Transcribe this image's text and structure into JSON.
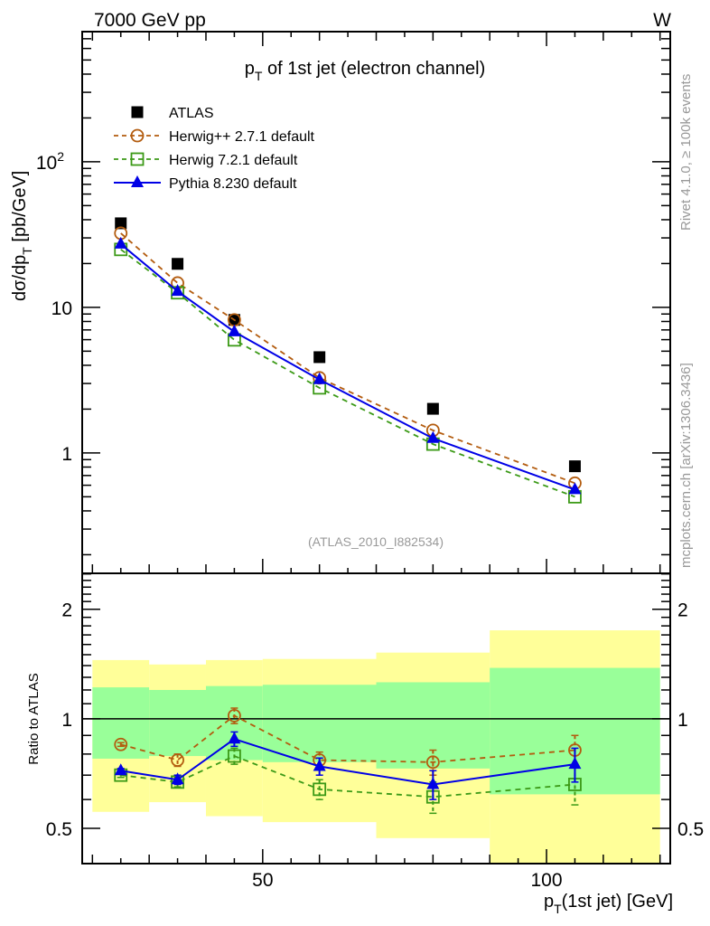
{
  "header": {
    "left": "7000 GeV pp",
    "right": "W"
  },
  "side_labels": {
    "rivet": "Rivet 4.1.0, ≥ 100k events",
    "mcplots": "mcplots.cern.ch [arXiv:1306.3436]"
  },
  "chart_data": [
    {
      "type": "line",
      "title": "p_T of 1st jet (electron channel)",
      "title_main": "p",
      "title_sub": "T",
      "title_rest": " of 1st jet (electron channel)",
      "ylabel": "dσ/dp_T [pb/GeV]",
      "ylabel_main": "dσ/dp",
      "ylabel_sub": "T",
      "ylabel_rest": "  [pb/GeV]",
      "yscale": "log",
      "ylim": [
        0.149,
        783
      ],
      "xlim": [
        18.2,
        121.8
      ],
      "yticks": [
        {
          "value": 100,
          "label": "10",
          "sup": "2"
        },
        {
          "value": 10,
          "label": "10",
          "sup": ""
        },
        {
          "value": 1,
          "label": "1",
          "sup": ""
        }
      ],
      "annotation": "(ATLAS_2010_I882534)",
      "legend_position": "top-left",
      "x": [
        25,
        35,
        45,
        60,
        80,
        105
      ],
      "series": [
        {
          "name": "ATLAS",
          "marker": "square-filled",
          "color": "#000000",
          "line": "none",
          "values": [
            37.8,
            19.9,
            8.2,
            4.55,
            2.01,
            0.81
          ]
        },
        {
          "name": "Herwig++ 2.7.1 default",
          "marker": "circle-open",
          "color": "#b35c0f",
          "line": "dashed",
          "values": [
            32.3,
            14.7,
            8.2,
            3.28,
            1.43,
            0.62
          ]
        },
        {
          "name": "Herwig 7.2.1 default",
          "marker": "square-open",
          "color": "#3c9a17",
          "line": "dashed",
          "values": [
            25.0,
            12.6,
            5.98,
            2.8,
            1.15,
            0.5
          ]
        },
        {
          "name": "Pythia 8.230 default",
          "marker": "triangle-filled",
          "color": "#0000e6",
          "line": "solid",
          "values": [
            27.2,
            12.9,
            6.8,
            3.19,
            1.26,
            0.56
          ]
        }
      ]
    },
    {
      "type": "line",
      "ylabel": "Ratio to ATLAS",
      "yscale": "log",
      "ylim": [
        0.4,
        2.51
      ],
      "xlim": [
        18.2,
        121.8
      ],
      "xlabel": "p_T(1st jet) [GeV]",
      "xlabel_main": "p",
      "xlabel_sub": "T",
      "xlabel_rest": "(1st jet) [GeV]",
      "xticks": [
        {
          "value": 50,
          "label": "50"
        },
        {
          "value": 100,
          "label": "100"
        }
      ],
      "yticks": [
        {
          "value": 2,
          "label": "2"
        },
        {
          "value": 1,
          "label": "1"
        },
        {
          "value": 0.5,
          "label": "0.5"
        }
      ],
      "reference_line": 1,
      "bands": {
        "bins": [
          [
            20,
            30
          ],
          [
            30,
            40
          ],
          [
            40,
            50
          ],
          [
            50,
            70
          ],
          [
            70,
            90
          ],
          [
            90,
            120
          ]
        ],
        "yellow": {
          "color": "#ffff99",
          "low": [
            0.555,
            0.59,
            0.54,
            0.52,
            0.47,
            0.35
          ],
          "high": [
            1.45,
            1.41,
            1.45,
            1.46,
            1.52,
            1.75
          ]
        },
        "green": {
          "color": "#99ff99",
          "low": [
            0.777,
            0.79,
            0.77,
            0.76,
            0.73,
            0.62
          ],
          "high": [
            1.22,
            1.2,
            1.23,
            1.24,
            1.26,
            1.38
          ]
        }
      },
      "x": [
        25,
        35,
        45,
        60,
        80,
        105
      ],
      "series": [
        {
          "name": "Herwig++ 2.7.1 default",
          "values": [
            0.85,
            0.77,
            1.02,
            0.77,
            0.76,
            0.82
          ],
          "err": [
            0.01,
            0.03,
            0.05,
            0.04,
            0.06,
            0.08
          ]
        },
        {
          "name": "Herwig 7.2.1 default",
          "values": [
            0.7,
            0.67,
            0.79,
            0.64,
            0.61,
            0.66
          ],
          "err": [
            0.01,
            0.02,
            0.04,
            0.04,
            0.06,
            0.08
          ]
        },
        {
          "name": "Pythia 8.230 default",
          "values": [
            0.72,
            0.68,
            0.88,
            0.74,
            0.66,
            0.75
          ],
          "err": [
            0.01,
            0.02,
            0.04,
            0.04,
            0.06,
            0.08
          ]
        }
      ]
    }
  ]
}
